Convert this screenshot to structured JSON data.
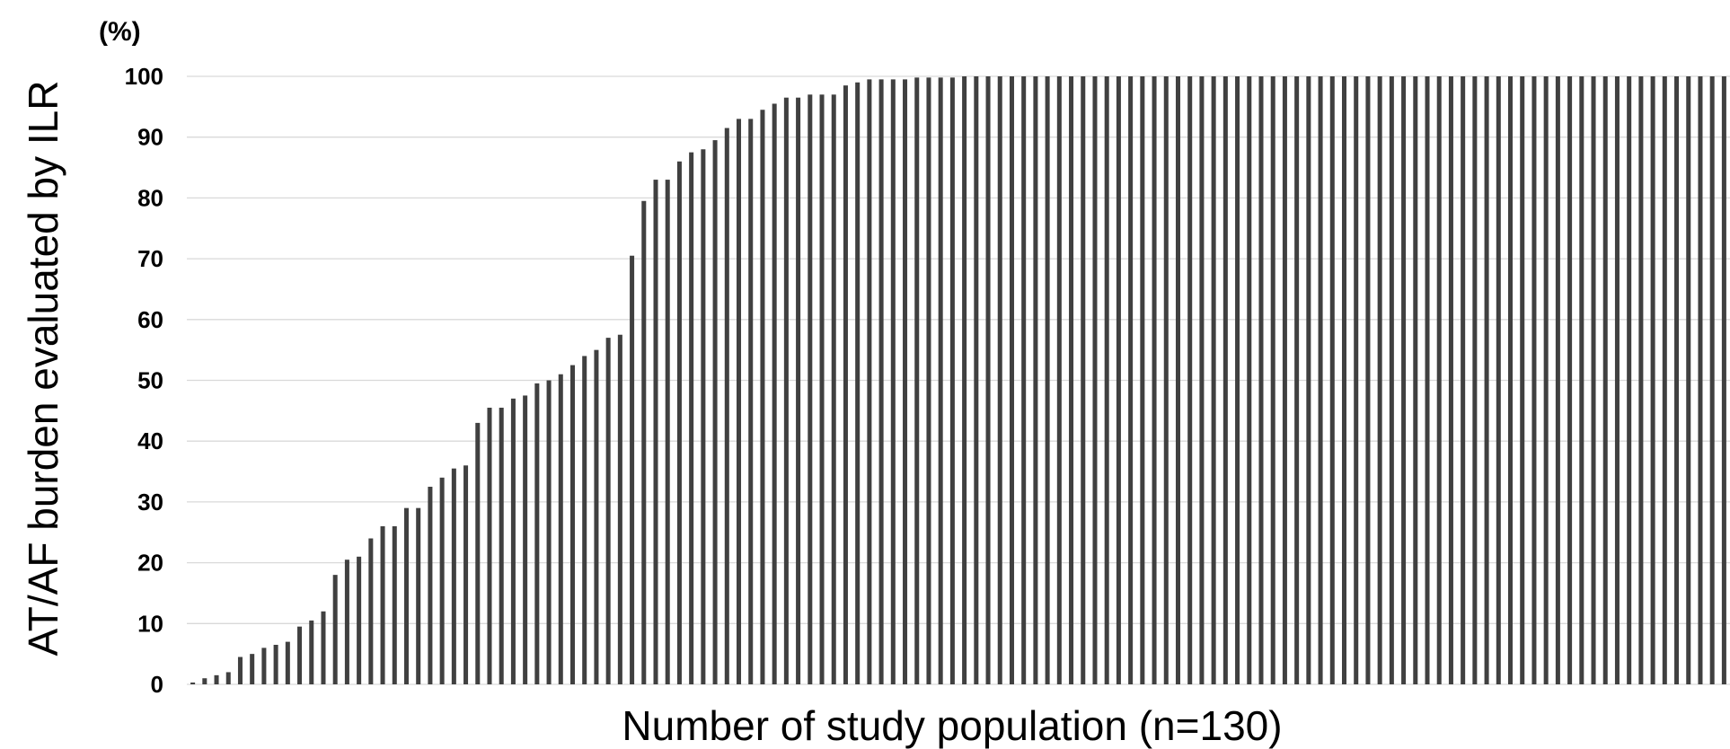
{
  "chart_data": {
    "type": "bar",
    "ylabel": "AT/AF burden evaluated by ILR",
    "xlabel": "Number of study population (n=130)",
    "y_unit_label": "(%)",
    "ylim": [
      0,
      100
    ],
    "yticks": [
      "0",
      "10",
      "20",
      "30",
      "40",
      "50",
      "60",
      "70",
      "80",
      "90",
      "100"
    ],
    "grid": "horizontal",
    "bar_color": "#404040",
    "values": [
      0.3,
      1,
      1.5,
      2,
      4.5,
      5,
      6,
      6.5,
      7,
      9.5,
      10.5,
      12,
      18,
      20.5,
      21,
      24,
      26,
      26,
      29,
      29,
      32.5,
      34,
      35.5,
      36,
      43,
      45.5,
      45.5,
      47,
      47.5,
      49.5,
      50,
      51,
      52.5,
      54,
      55,
      57,
      57.5,
      70.5,
      79.5,
      83,
      83,
      86,
      87.5,
      88,
      89.5,
      91.5,
      93,
      93,
      94.5,
      95.5,
      96.5,
      96.5,
      97,
      97,
      97,
      98.5,
      99,
      99.5,
      99.5,
      99.5,
      99.5,
      99.8,
      99.8,
      99.8,
      99.8,
      100,
      100,
      100,
      100,
      100,
      100,
      100,
      100,
      100,
      100,
      100,
      100,
      100,
      100,
      100,
      100,
      100,
      100,
      100,
      100,
      100,
      100,
      100,
      100,
      100,
      100,
      100,
      100,
      100,
      100,
      100,
      100,
      100,
      100,
      100,
      100,
      100,
      100,
      100,
      100,
      100,
      100,
      100,
      100,
      100,
      100,
      100,
      100,
      100,
      100,
      100,
      100,
      100,
      100,
      100,
      100,
      100,
      100,
      100,
      100,
      100,
      100,
      100,
      100,
      100
    ]
  }
}
